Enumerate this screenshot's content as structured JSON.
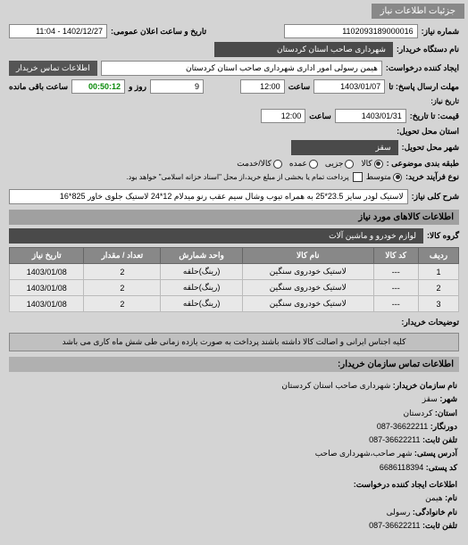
{
  "header_tab": "جزئیات اطلاعات نیاز",
  "fields": {
    "request_number_label": "شماره نیاز:",
    "request_number": "1102093189000016",
    "announce_label": "تاریخ و ساعت اعلان عمومی:",
    "announce_value": "1402/12/27 - 11:04",
    "device_label": "نام دستگاه خریدار:",
    "device_value": "شهرداری صاحب استان کردستان",
    "creator_label": "ایجاد کننده درخواست:",
    "creator_value": "هیمن رسولی امور اداری شهرداری صاحب استان کردستان",
    "contact_btn": "اطلاعات تماس خریدار",
    "deadline_label": "مهلت ارسال پاسخ: تا",
    "deadline_date": "1403/01/07",
    "deadline_hour_label": "ساعت",
    "deadline_hour": "12:00",
    "remaining_days": "9",
    "remaining_days_label": "روز و",
    "remaining_time": "00:50:12",
    "remaining_suffix": "ساعت باقی مانده",
    "end_from_label": "تاریخ نیاز:",
    "end_to_label": "قیمت: تا تاریخ:",
    "end_date": "1403/01/31",
    "end_hour_label": "ساعت",
    "end_hour": "12:00",
    "delivery_place_label": "استان محل تحویل:",
    "delivery_city_label": "شهر محل تحویل:",
    "delivery_city": "سقز",
    "category_label": "طبقه بندی موضوعی :",
    "radio_kala": "کالا",
    "radio_jozi": "جزیی",
    "radio_omde": "عمده",
    "radio_kalakhidmat": "کالا/خدمت",
    "process_label": "نوع فرآیند خرید:",
    "process_radio_middle": "متوسط",
    "process_note": "پرداخت تمام یا بخشی از مبلغ خرید،از محل \"اسناد خزانه اسلامی\" خواهد بود.",
    "need_desc_label": "شرح کلی نیاز:",
    "need_desc": "لاستیک لودر سایز 23.5*25 به همراه تیوب وشال سیم عقب رنو میدلام 12*24 لاستیک جلوی خاور 825*16"
  },
  "section_goods_title": "اطلاعات کالاهای مورد نیاز",
  "goods_group_label": "گروه کالا:",
  "goods_group_value": "لوازم خودرو و ماشین آلات",
  "table": {
    "headers": {
      "row": "ردیف",
      "code": "کد کالا",
      "name": "نام کالا",
      "unit": "واحد شمارش",
      "qty": "تعداد / مقدار",
      "date": "تاریخ نیاز"
    },
    "rows": [
      {
        "n": "1",
        "code": "---",
        "name": "لاستیک خودروی سنگین",
        "unit": "(رینگ)حلقه",
        "qty": "2",
        "date": "1403/01/08"
      },
      {
        "n": "2",
        "code": "---",
        "name": "لاستیک خودروی سنگین",
        "unit": "(رینگ)حلقه",
        "qty": "2",
        "date": "1403/01/08"
      },
      {
        "n": "3",
        "code": "---",
        "name": "لاستیک خودروی سنگین",
        "unit": "(رینگ)حلقه",
        "qty": "2",
        "date": "1403/01/08"
      }
    ]
  },
  "buyer_note_label": "توضیحات خریدار:",
  "buyer_note": "کلیه اجناس ایرانی و اصالت کالا داشته باشند پرداخت به صورت یازده زمانی طی شش ماه کاری می باشد",
  "contact_section_title": "اطلاعات تماس سازمان خریدار:",
  "contact": {
    "org_name_label": "نام سازمان خریدار:",
    "org_name": "شهرداری صاحب استان کردستان",
    "city_label": "شهر:",
    "city": "سقز",
    "province_label": "استان:",
    "province": "کردستان",
    "postbox_label": "دورنگار:",
    "postbox": "36622211-087",
    "postcode_label": "تلفن ثابت:",
    "postcode": "36622211-087",
    "address_label": "آدرس پستی:",
    "address": "شهر صاحب،شهرداری صاحب",
    "natcode_label": "کد پستی:",
    "natcode": "6686118394",
    "req_creator_label": "اطلاعات ایجاد کننده درخواست:",
    "name_label": "نام:",
    "name": "هیمن",
    "family_label": "نام خانوادگی:",
    "family": "رسولی",
    "phone_label": "تلفن ثابت:",
    "phone": "36622211-087"
  }
}
